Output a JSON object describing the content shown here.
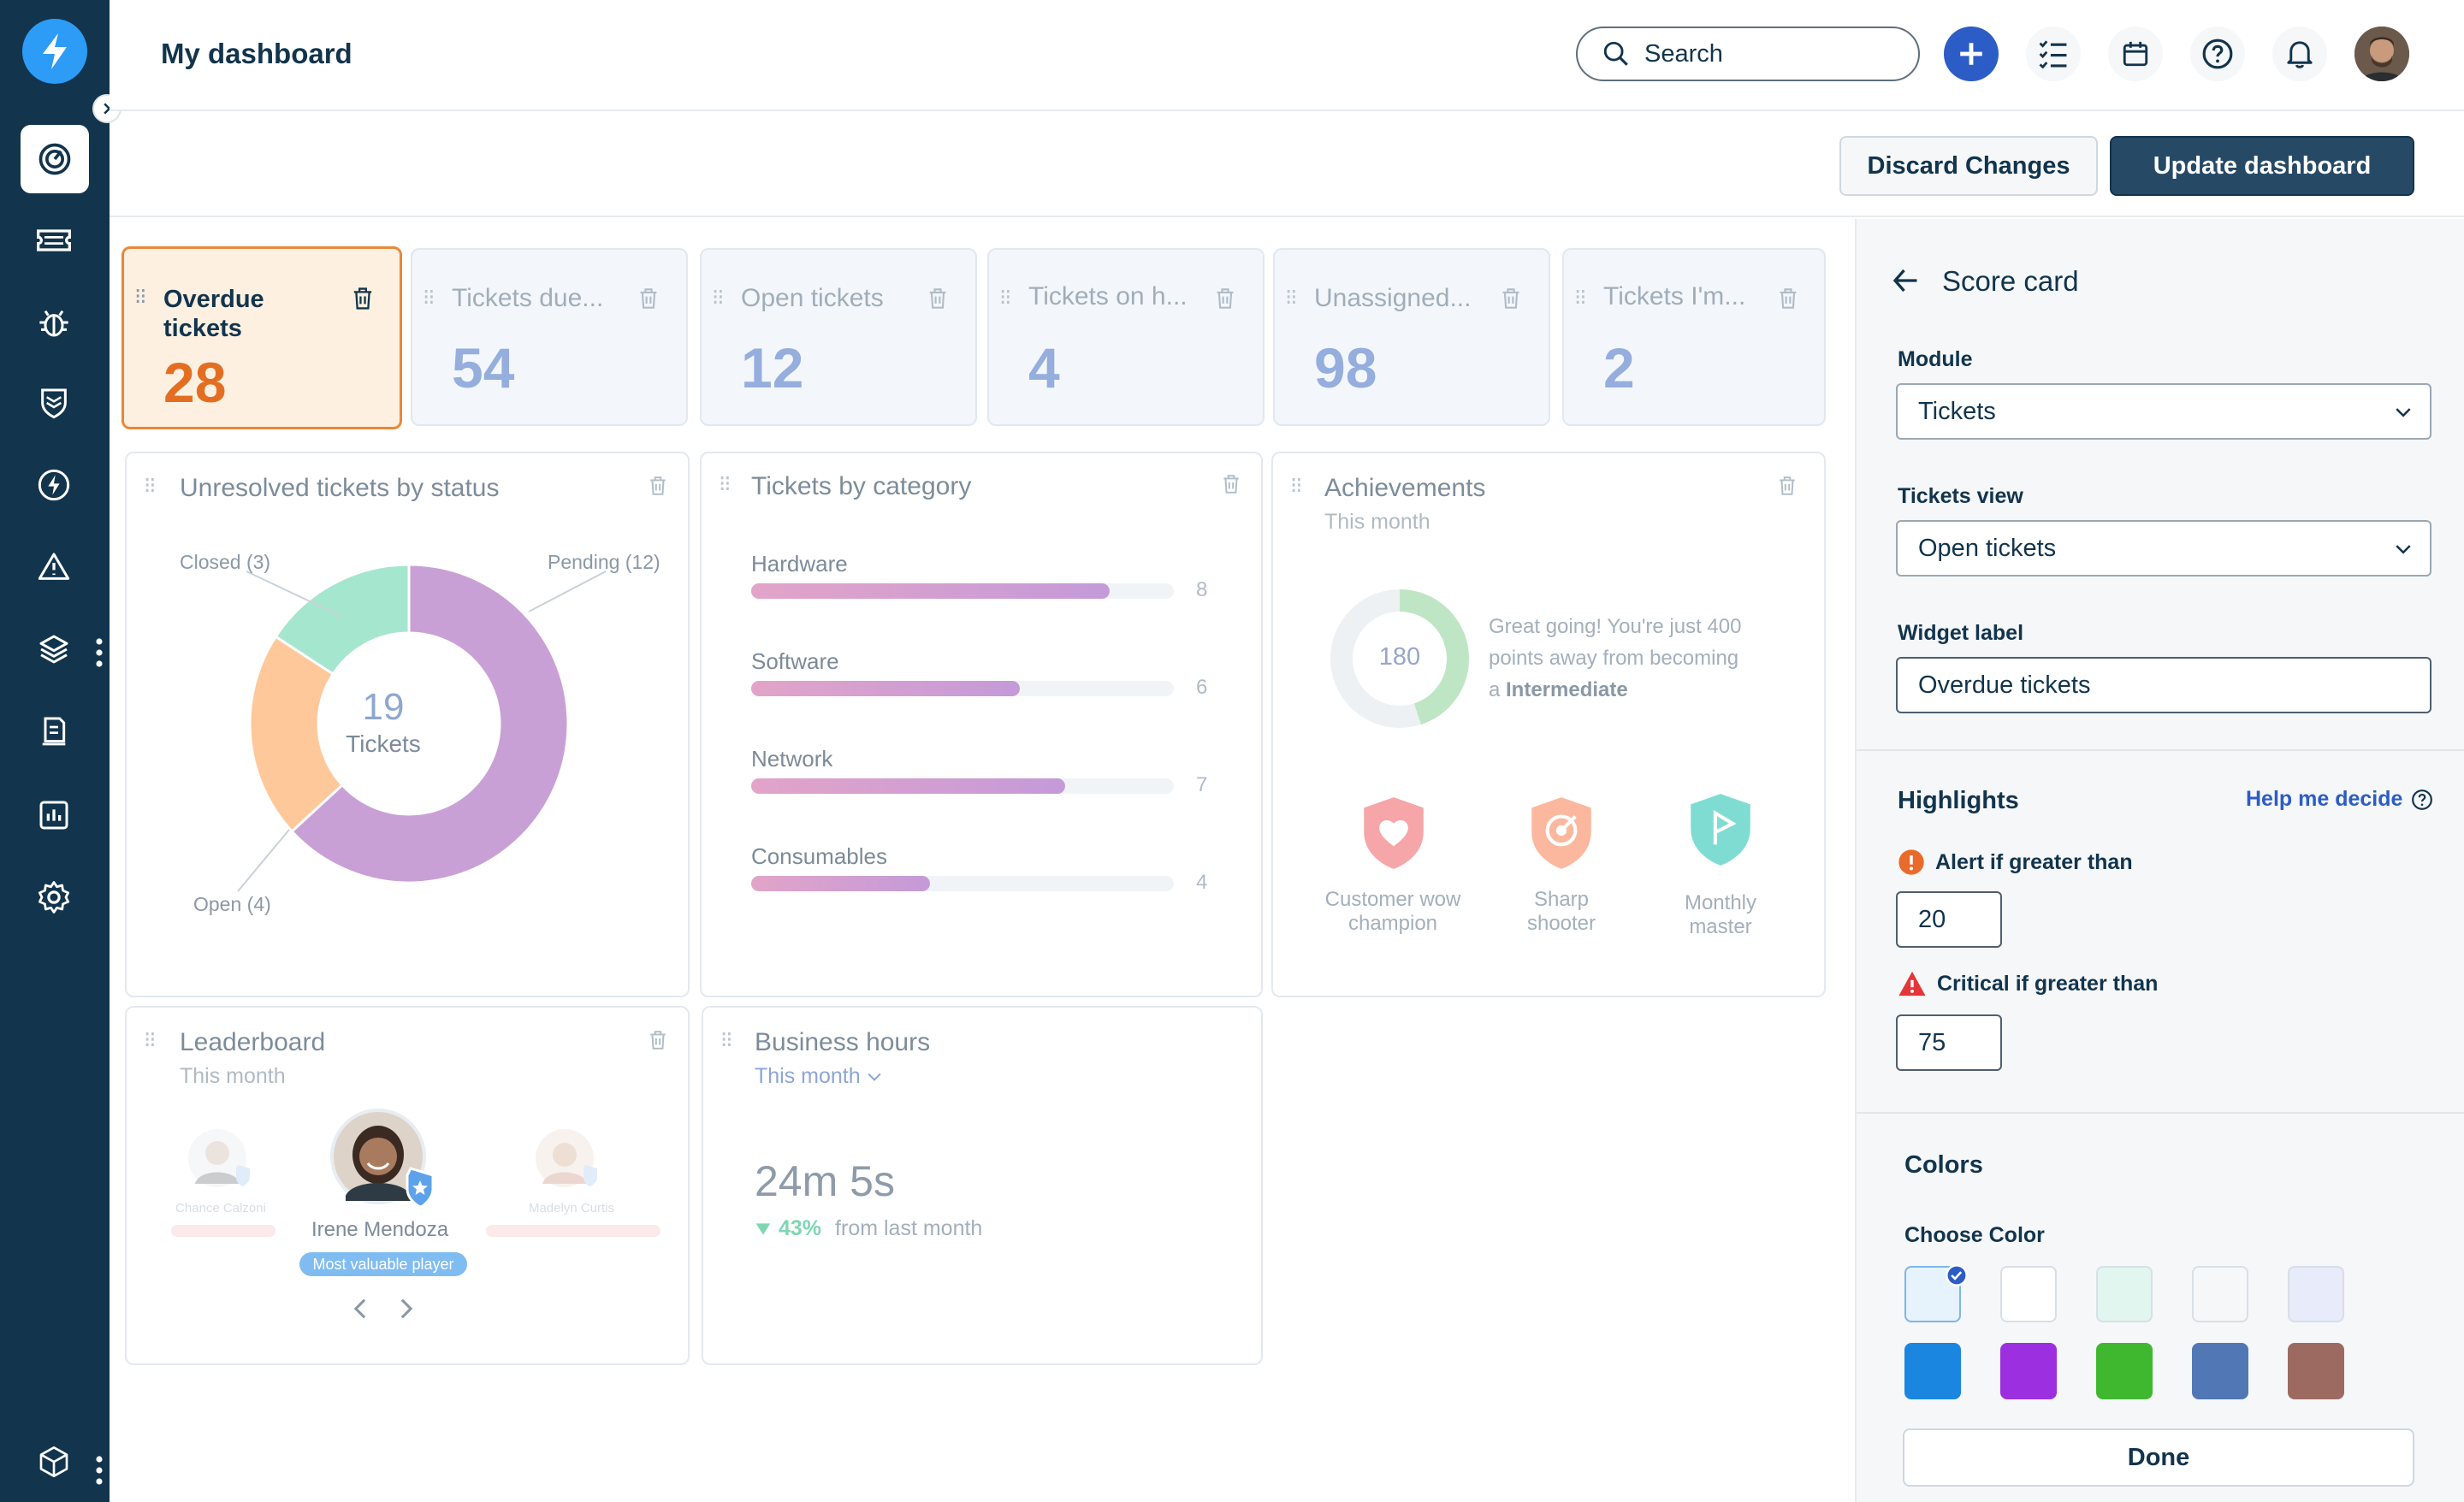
{
  "header": {
    "title": "My dashboard",
    "search_placeholder": "Search"
  },
  "toolbar": {
    "discard_label": "Discard Changes",
    "update_label": "Update dashboard"
  },
  "scorecards": [
    {
      "label_line1": "Overdue",
      "label_line2": "tickets",
      "value": "28"
    },
    {
      "label": "Tickets due...",
      "value": "54"
    },
    {
      "label": "Open tickets",
      "value": "12"
    },
    {
      "label": "Tickets on h...",
      "value": "4"
    },
    {
      "label": "Unassigned...",
      "value": "98"
    },
    {
      "label": "Tickets I'm...",
      "value": "2"
    }
  ],
  "unresolved": {
    "title": "Unresolved tickets by status",
    "center_value": "19",
    "center_label": "Tickets",
    "slices": [
      {
        "label": "Pending (12)",
        "value": 12,
        "color": "#c9a0d6"
      },
      {
        "label": "Open (4)",
        "value": 4,
        "color": "#ffc89a"
      },
      {
        "label": "Closed (3)",
        "value": 3,
        "color": "#a5e6cf"
      }
    ]
  },
  "category": {
    "title": "Tickets by category",
    "max": 10,
    "items": [
      {
        "label": "Hardware",
        "value": 8
      },
      {
        "label": "Software",
        "value": 6
      },
      {
        "label": "Network",
        "value": 7
      },
      {
        "label": "Consumables",
        "value": 4
      }
    ]
  },
  "achievements": {
    "title": "Achievements",
    "subtitle": "This month",
    "points": "180",
    "progress": 0.45,
    "message_line1": "Great going! You're just 400",
    "message_line2": "points away from becoming",
    "message_prefix": "a ",
    "message_bold": "Intermediate",
    "badges": [
      {
        "line1": "Customer wow",
        "line2": "champion",
        "icon": "heart-shield-icon",
        "color": "#f6a5a8"
      },
      {
        "line1": "Sharp",
        "line2": "shooter",
        "icon": "target-shield-icon",
        "color": "#fbb89e"
      },
      {
        "line1": "Monthly",
        "line2": "master",
        "icon": "flag-shield-icon",
        "color": "#7fdcd2"
      }
    ]
  },
  "leaderboard": {
    "title": "Leaderboard",
    "subtitle": "This month",
    "left_name": "Chance Calzoni",
    "center_name": "Irene Mendoza",
    "center_tag": "Most valuable player",
    "right_name": "Madelyn Curtis"
  },
  "business_hours": {
    "title": "Business hours",
    "period": "This month",
    "value": "24m 5s",
    "change": "43%",
    "change_suffix": "from last month"
  },
  "panel": {
    "title": "Score card",
    "module_label": "Module",
    "module_value": "Tickets",
    "view_label": "Tickets view",
    "view_value": "Open tickets",
    "widget_label": "Widget label",
    "widget_value": "Overdue tickets",
    "highlights_title": "Highlights",
    "help_link": "Help me decide",
    "alert_label": "Alert if greater than",
    "alert_value": "20",
    "critical_label": "Critical if greater than",
    "critical_value": "75",
    "colors_title": "Colors",
    "choose_color_label": "Choose Color",
    "done_label": "Done",
    "swatches_row1": [
      "#e6f2fc",
      "#ffffff",
      "#e2f6f0",
      "#f5f7f9",
      "#e7ebfa"
    ],
    "swatches_row2": [
      "#1a86e0",
      "#9c2fe0",
      "#3fb830",
      "#5277b5",
      "#9c6a60"
    ]
  }
}
